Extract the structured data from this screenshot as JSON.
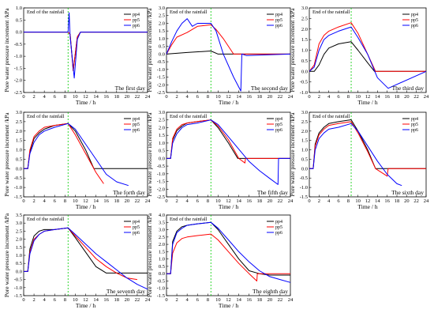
{
  "colors": {
    "pp4": "#000000",
    "pp5": "#ff0000",
    "pp6": "#0000ff",
    "rainline": "#00cc00"
  },
  "chart_data": [
    {
      "type": "line",
      "x_label": "Time / h",
      "y_label": "Pore water pressure increment /kPa",
      "xlim": [
        0,
        24
      ],
      "ylim": [
        -2.5,
        1.0
      ],
      "yticks": [
        "-2.5",
        "-2.0",
        "-1.5",
        "-1.0",
        "-0.5",
        "0.0",
        "0.5",
        "1.0"
      ],
      "xticks": [
        "0",
        "2",
        "4",
        "6",
        "8",
        "10",
        "12",
        "14",
        "16",
        "18",
        "20",
        "22",
        "24"
      ],
      "annotation": "End of the rainfall",
      "rain_end": 8.6,
      "day_label": "The first day",
      "series": [
        {
          "name": "pp4",
          "x": [
            0,
            8.6,
            9.0,
            9.6,
            10.4,
            11,
            24
          ],
          "y": [
            0.0,
            0.0,
            -0.1,
            -1.6,
            -0.2,
            0.0,
            0.0
          ]
        },
        {
          "name": "pp5",
          "x": [
            0,
            8.6,
            9.0,
            9.6,
            10.4,
            11,
            24
          ],
          "y": [
            0.0,
            0.0,
            -0.1,
            -1.6,
            -0.2,
            0.0,
            0.0
          ]
        },
        {
          "name": "pp6",
          "x": [
            0,
            8.6,
            8.8,
            9.0,
            9.8,
            10.4,
            11,
            24
          ],
          "y": [
            0.0,
            0.0,
            0.8,
            -0.2,
            -1.9,
            -0.3,
            0.0,
            0.0
          ]
        }
      ]
    },
    {
      "type": "line",
      "x_label": "Time / h",
      "y_label": "Pore water pressure increment /kPa",
      "xlim": [
        0,
        24
      ],
      "ylim": [
        -2.5,
        3.0
      ],
      "yticks": [
        "-2.5",
        "-2.0",
        "-1.5",
        "-1.0",
        "-0.5",
        "0.0",
        "0.5",
        "1.0",
        "1.5",
        "2.0",
        "2.5",
        "3.0"
      ],
      "xticks": [
        "0",
        "2",
        "4",
        "6",
        "8",
        "10",
        "12",
        "14",
        "16",
        "18",
        "20",
        "22",
        "24"
      ],
      "annotation": "End of the rainfall",
      "rain_end": 8.6,
      "day_label": "The second day",
      "series": [
        {
          "name": "pp4",
          "x": [
            0,
            4,
            8.6,
            10,
            12,
            13,
            24
          ],
          "y": [
            0.0,
            0.1,
            0.2,
            0.0,
            0.0,
            0.0,
            0.0
          ]
        },
        {
          "name": "pp5",
          "x": [
            0,
            1,
            2,
            4,
            6,
            8.6,
            9.6,
            11,
            13,
            14,
            24
          ],
          "y": [
            0.0,
            0.6,
            1.1,
            1.4,
            1.8,
            1.9,
            1.6,
            1.0,
            0.0,
            0.0,
            0.0
          ]
        },
        {
          "name": "pp6",
          "x": [
            0,
            1,
            2,
            3,
            4,
            5,
            6,
            8.6,
            9.6,
            11,
            13,
            14.4,
            14.6,
            15.5,
            24
          ],
          "y": [
            0.0,
            0.8,
            1.5,
            2.0,
            2.3,
            1.8,
            2.0,
            2.0,
            1.5,
            0.0,
            -1.5,
            -2.4,
            0.0,
            -0.1,
            0.0
          ]
        }
      ]
    },
    {
      "type": "line",
      "x_label": "Time / h",
      "y_label": "Pore water pressure increment /kPa",
      "xlim": [
        0,
        24
      ],
      "ylim": [
        -1.0,
        3.0
      ],
      "yticks": [
        "-1.0",
        "-0.5",
        "0.0",
        "0.5",
        "1.0",
        "1.5",
        "2.0",
        "2.5",
        "3.0"
      ],
      "xticks": [
        "0",
        "2",
        "4",
        "6",
        "8",
        "10",
        "12",
        "14",
        "16",
        "18",
        "20",
        "22",
        "24"
      ],
      "annotation": "End of the rainfall",
      "rain_end": 8.6,
      "day_label": "The third day",
      "series": [
        {
          "name": "pp4",
          "x": [
            0,
            1,
            2,
            3,
            4,
            6,
            8.6,
            10,
            12,
            13.4,
            24
          ],
          "y": [
            0.0,
            0.0,
            0.3,
            0.8,
            1.1,
            1.3,
            1.4,
            1.0,
            0.4,
            0.0,
            0.0
          ]
        },
        {
          "name": "pp5",
          "x": [
            0,
            1,
            2,
            3,
            4,
            6,
            8.6,
            10,
            12,
            13.6,
            24
          ],
          "y": [
            0.0,
            0.3,
            1.3,
            1.7,
            1.9,
            2.1,
            2.3,
            1.8,
            0.8,
            0.0,
            0.0
          ]
        },
        {
          "name": "pp6",
          "x": [
            0,
            1,
            2,
            3,
            4,
            6,
            8.6,
            10,
            12,
            14,
            16.2,
            24
          ],
          "y": [
            0.0,
            0.2,
            1.0,
            1.5,
            1.7,
            1.9,
            2.1,
            1.6,
            0.8,
            -0.3,
            -0.8,
            0.0
          ]
        }
      ]
    },
    {
      "type": "line",
      "x_label": "Time / h",
      "y_label": "Pore water pressure increment /kPa",
      "xlim": [
        0,
        24
      ],
      "ylim": [
        -1.5,
        3.0
      ],
      "yticks": [
        "-1.5",
        "-1.0",
        "-0.5",
        "0.0",
        "0.5",
        "1.0",
        "1.5",
        "2.0",
        "2.5",
        "3.0"
      ],
      "xticks": [
        "0",
        "2",
        "4",
        "6",
        "8",
        "10",
        "12",
        "14",
        "16",
        "18",
        "20",
        "22",
        "24"
      ],
      "annotation": "End of the rainfall",
      "rain_end": 8.6,
      "day_label": "The forth day",
      "series": [
        {
          "name": "pp4",
          "x": [
            0,
            0.8,
            1.2,
            2,
            3,
            4,
            6,
            8.6,
            10,
            12,
            13.6,
            24
          ],
          "y": [
            0.0,
            0.0,
            0.9,
            1.6,
            1.9,
            2.1,
            2.3,
            2.4,
            2.0,
            1.0,
            0.0,
            0.0
          ]
        },
        {
          "name": "pp5",
          "x": [
            0,
            0.8,
            1.2,
            2,
            3,
            4,
            6,
            8.6,
            10,
            12,
            14,
            15.5
          ],
          "y": [
            0.0,
            0.0,
            1.0,
            1.7,
            2.0,
            2.2,
            2.3,
            2.4,
            1.8,
            0.8,
            -0.2,
            -0.8
          ]
        },
        {
          "name": "pp6",
          "x": [
            0,
            0.8,
            1.2,
            2,
            3,
            4,
            6,
            8.6,
            10,
            12,
            14,
            16,
            18,
            20.3
          ],
          "y": [
            0.0,
            0.0,
            0.8,
            1.4,
            1.8,
            2.0,
            2.2,
            2.4,
            2.1,
            1.3,
            0.5,
            -0.3,
            -0.7,
            -0.9
          ]
        }
      ]
    },
    {
      "type": "line",
      "x_label": "Time / h",
      "y_label": "Pore water pressure increment /kPa",
      "xlim": [
        0,
        24
      ],
      "ylim": [
        -2.5,
        3.0
      ],
      "yticks": [
        "-2.5",
        "-2.0",
        "-1.5",
        "-1.0",
        "-0.5",
        "0.0",
        "0.5",
        "1.0",
        "1.5",
        "2.0",
        "2.5",
        "3.0"
      ],
      "xticks": [
        "0",
        "2",
        "4",
        "6",
        "8",
        "10",
        "12",
        "14",
        "16",
        "18",
        "20",
        "22",
        "24"
      ],
      "annotation": "End of the rainfall",
      "rain_end": 8.6,
      "day_label": "The fifth day",
      "series": [
        {
          "name": "pp4",
          "x": [
            0,
            0.8,
            1.2,
            2,
            3,
            4,
            6,
            8.6,
            10,
            12,
            13.8,
            24
          ],
          "y": [
            0.0,
            0.0,
            1.2,
            1.8,
            2.1,
            2.3,
            2.4,
            2.5,
            2.0,
            1.0,
            0.0,
            0.0
          ]
        },
        {
          "name": "pp5",
          "x": [
            0,
            0.8,
            1.2,
            2,
            3,
            4,
            6,
            8.6,
            10,
            12,
            14,
            15.2,
            15.3,
            24
          ],
          "y": [
            0.0,
            0.0,
            1.3,
            1.9,
            2.2,
            2.3,
            2.4,
            2.5,
            2.1,
            1.2,
            0.0,
            -0.3,
            0.0,
            0.0
          ]
        },
        {
          "name": "pp6",
          "x": [
            0,
            0.8,
            1.2,
            2,
            3,
            4,
            6,
            8.6,
            10,
            12,
            14,
            16,
            18,
            20,
            21.6,
            21.7,
            24
          ],
          "y": [
            0.0,
            0.0,
            1.0,
            1.6,
            2.0,
            2.2,
            2.3,
            2.5,
            2.2,
            1.4,
            0.6,
            -0.2,
            -0.8,
            -1.3,
            -1.7,
            0.0,
            0.0
          ]
        }
      ]
    },
    {
      "type": "line",
      "x_label": "Time / h",
      "y_label": "Pore water pressure increment /kPa",
      "xlim": [
        0,
        24
      ],
      "ylim": [
        -1.5,
        3.0
      ],
      "yticks": [
        "-1.5",
        "-1.0",
        "-0.5",
        "0.0",
        "0.5",
        "1.0",
        "1.5",
        "2.0",
        "2.5",
        "3.0"
      ],
      "xticks": [
        "0",
        "2",
        "4",
        "6",
        "8",
        "10",
        "12",
        "14",
        "16",
        "18",
        "20",
        "22",
        "24"
      ],
      "annotation": "End of the rainfall",
      "rain_end": 8.6,
      "day_label": "The sixth day",
      "series": [
        {
          "name": "pp4",
          "x": [
            0,
            0.8,
            1.2,
            2,
            3,
            4,
            6,
            8.6,
            10,
            12,
            13.6,
            24
          ],
          "y": [
            0.0,
            0.0,
            1.3,
            1.9,
            2.2,
            2.4,
            2.5,
            2.6,
            2.0,
            1.0,
            0.0,
            0.0
          ]
        },
        {
          "name": "pp5",
          "x": [
            0,
            0.8,
            1.2,
            2,
            3,
            4,
            6,
            8.6,
            10,
            12,
            13.6,
            16,
            16.2,
            24
          ],
          "y": [
            0.0,
            0.0,
            1.2,
            1.8,
            2.1,
            2.3,
            2.4,
            2.5,
            1.9,
            0.9,
            0.0,
            -0.4,
            0.0,
            0.0
          ]
        },
        {
          "name": "pp6",
          "x": [
            0,
            0.8,
            1.2,
            2,
            3,
            4,
            6,
            8.6,
            10,
            12,
            14,
            16,
            18,
            19
          ],
          "y": [
            0.0,
            0.0,
            1.0,
            1.6,
            1.9,
            2.1,
            2.2,
            2.4,
            2.0,
            1.2,
            0.4,
            -0.3,
            -0.8,
            -0.9
          ]
        }
      ]
    },
    {
      "type": "line",
      "x_label": "Time / h",
      "y_label": "Pore water pressure increment /kPa",
      "xlim": [
        0,
        24
      ],
      "ylim": [
        -1.5,
        3.5
      ],
      "yticks": [
        "-1.5",
        "-1.0",
        "-0.5",
        "0.0",
        "0.5",
        "1.0",
        "1.5",
        "2.0",
        "2.5",
        "3.0",
        "3.5"
      ],
      "xticks": [
        "0",
        "2",
        "4",
        "6",
        "8",
        "10",
        "12",
        "14",
        "16",
        "18",
        "20",
        "22",
        "24"
      ],
      "annotation": "End of the rainfall",
      "rain_end": 8.6,
      "day_label": "The seventh day",
      "series": [
        {
          "name": "pp4",
          "x": [
            0,
            0.8,
            1.2,
            2,
            3,
            4,
            6,
            8.6,
            10,
            12,
            14,
            16,
            24
          ],
          "y": [
            0.0,
            0.0,
            1.4,
            2.2,
            2.5,
            2.6,
            2.6,
            2.7,
            2.1,
            1.2,
            0.3,
            -0.1,
            -0.1
          ]
        },
        {
          "name": "pp5",
          "x": [
            0,
            0.8,
            1.2,
            2,
            3,
            4,
            6,
            8.6,
            10,
            12,
            14,
            16,
            18,
            20,
            22
          ],
          "y": [
            0.0,
            0.0,
            1.2,
            2.0,
            2.3,
            2.5,
            2.6,
            2.7,
            2.2,
            1.5,
            0.8,
            0.3,
            -0.1,
            -0.4,
            -0.5
          ]
        },
        {
          "name": "pp6",
          "x": [
            0,
            0.8,
            1.2,
            2,
            3,
            4,
            6,
            8.6,
            10,
            12,
            14,
            16,
            18,
            20,
            22,
            24
          ],
          "y": [
            0.0,
            0.0,
            1.1,
            1.9,
            2.3,
            2.5,
            2.6,
            2.7,
            2.3,
            1.7,
            1.1,
            0.6,
            0.1,
            -0.4,
            -0.8,
            -1.1
          ]
        }
      ]
    },
    {
      "type": "line",
      "x_label": "Time / h",
      "y_label": "Pore water pressure increment /kPa",
      "xlim": [
        0,
        24
      ],
      "ylim": [
        -1.5,
        4.0
      ],
      "yticks": [
        "-1.5",
        "-1.0",
        "-0.5",
        "0.0",
        "0.5",
        "1.0",
        "1.5",
        "2.0",
        "2.5",
        "3.0",
        "3.5",
        "4.0"
      ],
      "xticks": [
        "0",
        "2",
        "4",
        "6",
        "8",
        "10",
        "12",
        "14",
        "16",
        "18",
        "20",
        "22",
        "24"
      ],
      "annotation": "End of the rainfall",
      "rain_end": 8.6,
      "day_label": "The eighth day",
      "series": [
        {
          "name": "pp4",
          "x": [
            0,
            0.8,
            1.2,
            2,
            3,
            4,
            6,
            8.6,
            10,
            12,
            14,
            16,
            18,
            20,
            24
          ],
          "y": [
            0.0,
            0.0,
            2.2,
            2.9,
            3.2,
            3.3,
            3.4,
            3.5,
            3.0,
            2.0,
            1.0,
            0.2,
            0.0,
            -0.1,
            -0.1
          ]
        },
        {
          "name": "pp5",
          "x": [
            0,
            0.8,
            1.2,
            2,
            3,
            4,
            6,
            8.6,
            10,
            12,
            14,
            16,
            17.5,
            17.6,
            24
          ],
          "y": [
            0.0,
            0.0,
            1.4,
            2.1,
            2.4,
            2.5,
            2.6,
            2.7,
            2.3,
            1.5,
            0.7,
            0.0,
            -0.5,
            0.0,
            0.0
          ]
        },
        {
          "name": "pp6",
          "x": [
            0,
            0.8,
            1.2,
            2,
            3,
            4,
            6,
            8.6,
            10,
            12,
            14,
            16,
            18,
            20,
            22,
            24
          ],
          "y": [
            0.0,
            0.0,
            2.0,
            2.8,
            3.1,
            3.3,
            3.4,
            3.5,
            3.1,
            2.3,
            1.5,
            0.8,
            0.2,
            -0.2,
            -0.4,
            -0.6
          ]
        }
      ]
    }
  ]
}
